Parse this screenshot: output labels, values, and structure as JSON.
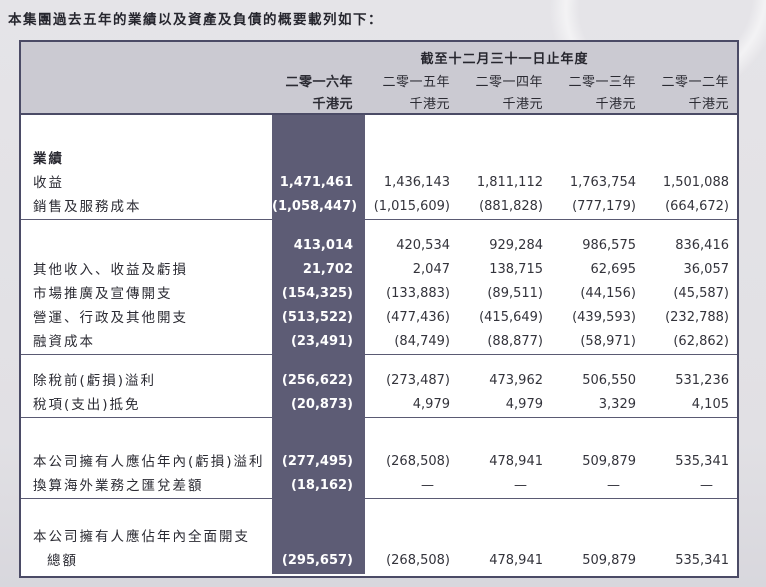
{
  "title": "本集團過去五年的業績以及資產及負債的概要載列如下：",
  "table": {
    "period_header": "截至十二月三十一日止年度",
    "unit_label": "千港元",
    "years": [
      "二零一六年",
      "二零一五年",
      "二零一四年",
      "二零一三年",
      "二零一二年"
    ],
    "highlight_color": "#5d5c75",
    "header_bg_color": "#cbcad2",
    "border_color": "#4b4b66",
    "rows": [
      {
        "label": "業績",
        "bold": true,
        "values": null,
        "spacer_before": 32
      },
      {
        "label": "收益",
        "values": [
          "1,471,461",
          "1,436,143",
          "1,811,112",
          "1,763,754",
          "1,501,088"
        ]
      },
      {
        "label": "銷售及服務成本",
        "values": [
          "(1,058,447)",
          "(1,015,609)",
          "(881,828)",
          "(777,179)",
          "(664,672)"
        ],
        "divider_after": true
      },
      {
        "label": "",
        "values": [
          "413,014",
          "420,534",
          "929,284",
          "986,575",
          "836,416"
        ],
        "spacer_before": 14
      },
      {
        "label": "其他收入、收益及虧損",
        "values": [
          "21,702",
          "2,047",
          "138,715",
          "62,695",
          "36,057"
        ]
      },
      {
        "label": "市場推廣及宣傳開支",
        "values": [
          "(154,325)",
          "(133,883)",
          "(89,511)",
          "(44,156)",
          "(45,587)"
        ]
      },
      {
        "label": "營運、行政及其他開支",
        "values": [
          "(513,522)",
          "(477,436)",
          "(415,649)",
          "(439,593)",
          "(232,788)"
        ]
      },
      {
        "label": "融資成本",
        "values": [
          "(23,491)",
          "(84,749)",
          "(88,877)",
          "(58,971)",
          "(62,862)"
        ],
        "divider_after": true
      },
      {
        "label": "除稅前(虧損)溢利",
        "values": [
          "(256,622)",
          "(273,487)",
          "473,962",
          "506,550",
          "531,236"
        ],
        "spacer_before": 14
      },
      {
        "label": "稅項(支出)抵免",
        "values": [
          "(20,873)",
          "4,979",
          "4,979",
          "3,329",
          "4,105"
        ],
        "divider_after": true
      },
      {
        "label": "本公司擁有人應佔年內(虧損)溢利",
        "values": [
          "(277,495)",
          "(268,508)",
          "478,941",
          "509,879",
          "535,341"
        ],
        "spacer_before": 32
      },
      {
        "label": "換算海外業務之匯兌差額",
        "values": [
          "(18,162)",
          "—",
          "—",
          "—",
          "—"
        ],
        "divider_after": true
      },
      {
        "label": "本公司擁有人應佔年內全面開支",
        "values": null,
        "spacer_before": 26
      },
      {
        "label": "總額",
        "indent": true,
        "values": [
          "(295,657)",
          "(268,508)",
          "478,941",
          "509,879",
          "535,341"
        ]
      }
    ]
  }
}
